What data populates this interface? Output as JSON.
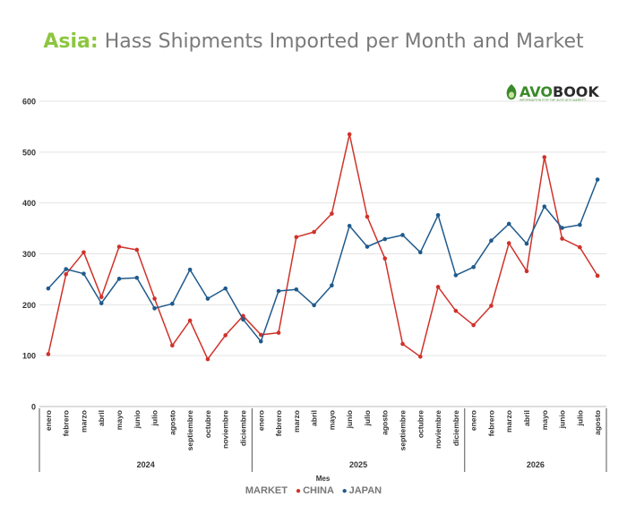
{
  "header": {
    "accent": "Asia:",
    "title": "Hass Shipments Imported per Month and Market"
  },
  "logo": {
    "text_a": "AVO",
    "text_b": "BOOK",
    "tagline": "INFORMATION FOR THE AVOCADO MARKET",
    "icon": "avocado-icon"
  },
  "colors": {
    "china": "#d0322a",
    "japan": "#1f5a8c",
    "accent": "#8cc63f"
  },
  "legend": {
    "title": "MARKET",
    "items": [
      "CHINA",
      "JAPAN"
    ]
  },
  "chart_data": {
    "type": "line",
    "xlabel": "Mes",
    "ylabel": "",
    "ylim": [
      0,
      600
    ],
    "yticks": [
      0,
      100,
      200,
      300,
      400,
      500,
      600
    ],
    "grid": true,
    "legend_position": "bottom",
    "years": [
      {
        "label": "2024",
        "months": [
          "enero",
          "febrero",
          "marzo",
          "abril",
          "mayo",
          "junio",
          "julio",
          "agosto",
          "septiembre",
          "octubre",
          "noviembre",
          "diciembre"
        ]
      },
      {
        "label": "2025",
        "months": [
          "enero",
          "febrero",
          "marzo",
          "abril",
          "mayo",
          "junio",
          "julio",
          "agosto",
          "septiembre",
          "octubre",
          "noviembre",
          "diciembre"
        ]
      },
      {
        "label": "2026",
        "months": [
          "enero",
          "febrero",
          "marzo",
          "abril",
          "mayo",
          "junio",
          "julio",
          "agosto"
        ]
      }
    ],
    "series": [
      {
        "name": "CHINA",
        "color": "#d0322a",
        "values": [
          103,
          260,
          303,
          215,
          314,
          308,
          212,
          120,
          169,
          93,
          140,
          178,
          141,
          145,
          333,
          343,
          379,
          535,
          373,
          291,
          123,
          98,
          235,
          188,
          160,
          198,
          321,
          266,
          490,
          330,
          313,
          257
        ]
      },
      {
        "name": "JAPAN",
        "color": "#1f5a8c",
        "values": [
          232,
          270,
          261,
          203,
          251,
          253,
          193,
          202,
          269,
          212,
          232,
          171,
          128,
          227,
          230,
          199,
          238,
          355,
          314,
          329,
          337,
          303,
          376,
          258,
          274,
          326,
          359,
          320,
          393,
          351,
          357,
          446
        ]
      }
    ]
  }
}
